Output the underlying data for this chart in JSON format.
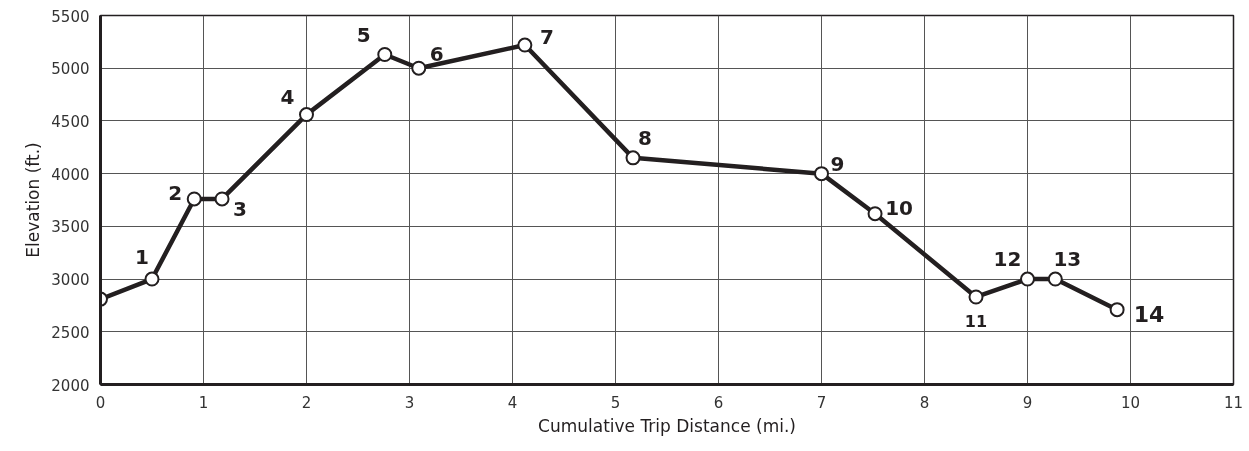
{
  "chart_data": {
    "type": "line",
    "xlabel": "Cumulative Trip Distance (mi.)",
    "ylabel": "Elevation (ft.)",
    "x": [
      0,
      0.5,
      0.91,
      1.18,
      2.0,
      2.76,
      3.09,
      4.12,
      5.17,
      7.0,
      7.52,
      8.5,
      9.0,
      9.27,
      9.87
    ],
    "series": [
      {
        "color": "#231f20",
        "values": [
          2810,
          3000,
          3760,
          3760,
          4560,
          5130,
          5000,
          5220,
          4150,
          4000,
          3620,
          2830,
          3000,
          3000,
          2710
        ]
      }
    ],
    "xlim": [
      0,
      11
    ],
    "xticks": [
      0,
      1,
      2,
      3,
      4,
      5,
      6,
      7,
      8,
      9,
      10,
      11
    ],
    "ylim": [
      2000,
      5500
    ],
    "yticks": [
      2000,
      2500,
      3000,
      3500,
      4000,
      4500,
      5000,
      5500
    ],
    "grid": true,
    "marker": "circle",
    "line_style": "solid",
    "annotations": [
      {
        "text": "1",
        "x": 0.5,
        "y": 3000
      },
      {
        "text": "2",
        "x": 0.91,
        "y": 3760
      },
      {
        "text": "3",
        "x": 1.18,
        "y": 3760
      },
      {
        "text": "4",
        "x": 2.0,
        "y": 4560
      },
      {
        "text": "5",
        "x": 2.76,
        "y": 5130
      },
      {
        "text": "6",
        "x": 3.09,
        "y": 5000
      },
      {
        "text": "7",
        "x": 4.12,
        "y": 5220
      },
      {
        "text": "8",
        "x": 5.17,
        "y": 4150
      },
      {
        "text": "9",
        "x": 7.0,
        "y": 4000
      },
      {
        "text": "10",
        "x": 7.52,
        "y": 3620
      },
      {
        "text": "11",
        "x": 8.5,
        "y": 2830
      },
      {
        "text": "12",
        "x": 9.0,
        "y": 3000
      },
      {
        "text": "13",
        "x": 9.27,
        "y": 3000
      },
      {
        "text": "14",
        "x": 9.87,
        "y": 2710
      }
    ]
  }
}
